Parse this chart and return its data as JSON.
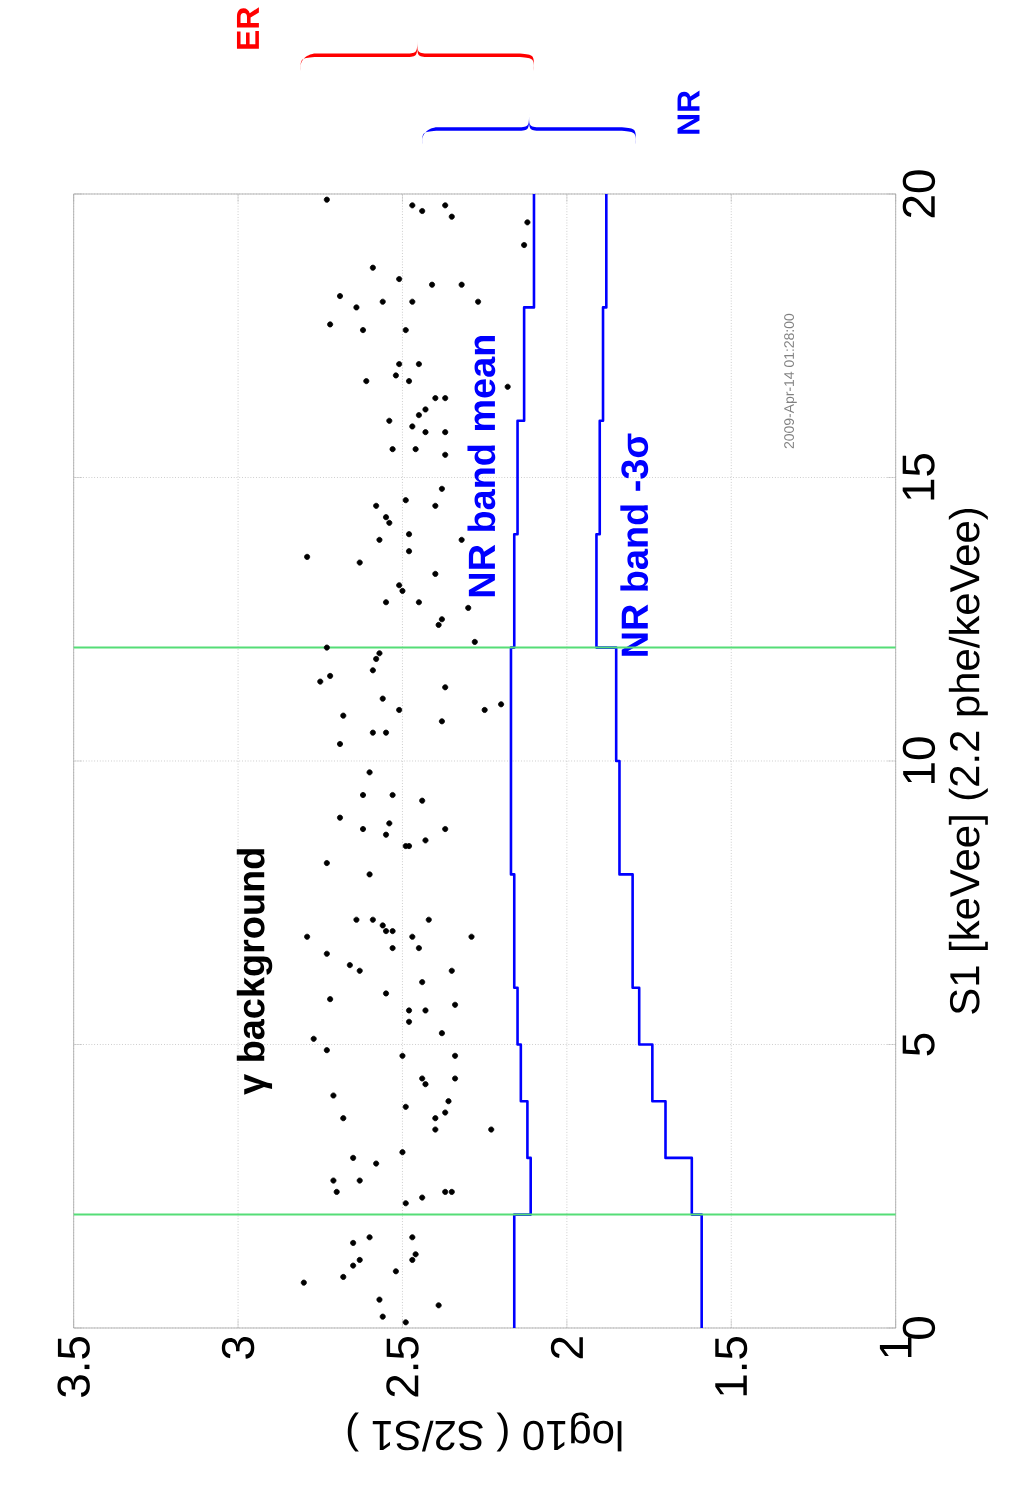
{
  "chart_data": {
    "type": "scatter",
    "xlabel": "log10 ( S2/S1 )",
    "ylabel": "S1 [keVee] (2.2 phe/keVee)",
    "xlim": [
      3.5,
      1
    ],
    "ylim": [
      0,
      20
    ],
    "xticks": [
      3.5,
      3,
      2.5,
      2,
      1.5,
      1
    ],
    "yticks": [
      0,
      5,
      10,
      15,
      20
    ],
    "grid": true,
    "series": [
      {
        "name": "γ background",
        "color": "#000000",
        "marker": "circle",
        "values": [
          19.9,
          19.8,
          19.7,
          19.8,
          19.6,
          19.5,
          19.1,
          18.7,
          18.5,
          18.4,
          18.4,
          18.2,
          18.0,
          18.1,
          18.1,
          18.1,
          17.7,
          17.6,
          17.6,
          17.0,
          16.8,
          17.0,
          16.7,
          16.7,
          16.6,
          16.4,
          16.4,
          16.2,
          16.1,
          16.0,
          15.9,
          15.8,
          15.8,
          15.5,
          15.5,
          15.4,
          14.8,
          14.6,
          14.5,
          14.5,
          14.3,
          14.2,
          14.0,
          13.9,
          13.9,
          13.6,
          13.5,
          13.7,
          13.3,
          13.1,
          13.0,
          12.8,
          12.8,
          12.5,
          12.4,
          12.7,
          12.1,
          12.0,
          11.9,
          11.8,
          11.4,
          11.5,
          11.6,
          11.3,
          11.1,
          10.9,
          10.8,
          10.7,
          10.9,
          11.0,
          10.5,
          10.5,
          10.3,
          9.8,
          9.4,
          9.4,
          9.3,
          9.0,
          8.8,
          8.9,
          8.7,
          8.8,
          8.5,
          8.5,
          8.6,
          8.2,
          8.0,
          6.9,
          7.2,
          7.2,
          7.1,
          7.0,
          7.0,
          6.7,
          6.9,
          6.7,
          7.2,
          6.9,
          6.6,
          6.4,
          6.3,
          6.3,
          6.1,
          5.8,
          5.9,
          5.6,
          5.4,
          5.6,
          5.7,
          5.2,
          5.1,
          4.9,
          4.8,
          4.8,
          4.4,
          4.4,
          4.3,
          4.0,
          4.1,
          3.9,
          3.8,
          3.7,
          3.5,
          3.7,
          3.5,
          3.0,
          2.9,
          3.1,
          2.6,
          2.4,
          2.6,
          2.2,
          2.3,
          2.4,
          2.4,
          1.5,
          1.6,
          1.1,
          1.2,
          0.9,
          0.8,
          1.0,
          1.6,
          1.3,
          1.2,
          0.5,
          0.2,
          0.1,
          0.4
        ],
        "x": [
          2.73,
          2.47,
          2.44,
          2.37,
          2.35,
          2.12,
          2.13,
          2.59,
          2.51,
          2.41,
          2.32,
          2.69,
          2.64,
          2.56,
          2.47,
          2.27,
          2.72,
          2.62,
          2.49,
          2.51,
          2.52,
          2.45,
          2.61,
          2.48,
          2.18,
          2.4,
          2.37,
          2.43,
          2.45,
          2.54,
          2.47,
          2.43,
          2.37,
          2.53,
          2.46,
          2.37,
          2.38,
          2.49,
          2.4,
          2.58,
          2.55,
          2.54,
          2.48,
          2.57,
          2.32,
          2.79,
          2.63,
          2.48,
          2.4,
          2.51,
          2.5,
          2.55,
          2.45,
          2.38,
          2.39,
          2.3,
          2.28,
          2.73,
          2.57,
          2.58,
          2.75,
          2.72,
          2.59,
          2.37,
          2.56,
          2.51,
          2.68,
          2.38,
          2.25,
          2.2,
          2.59,
          2.55,
          2.69,
          2.6,
          2.62,
          2.53,
          2.44,
          2.69,
          2.62,
          2.54,
          2.55,
          2.37,
          2.49,
          2.48,
          2.43,
          2.73,
          2.6,
          2.79,
          2.64,
          2.59,
          2.56,
          2.55,
          2.53,
          2.53,
          2.47,
          2.45,
          2.42,
          2.29,
          2.73,
          2.66,
          2.63,
          2.35,
          2.44,
          2.72,
          2.55,
          2.48,
          2.48,
          2.43,
          2.34,
          2.38,
          2.77,
          2.73,
          2.5,
          2.34,
          2.34,
          2.44,
          2.43,
          2.36,
          2.71,
          2.49,
          2.37,
          2.4,
          2.4,
          2.68,
          2.23,
          2.65,
          2.58,
          2.5,
          2.71,
          2.7,
          2.63,
          2.49,
          2.44,
          2.37,
          2.35,
          2.65,
          2.6,
          2.65,
          2.63,
          2.68,
          2.8,
          2.52,
          2.47,
          2.46,
          2.47,
          2.57,
          2.56,
          2.49,
          2.39
        ]
      },
      {
        "type": "line",
        "name": "NR band mean",
        "color": "#0000ff",
        "x": [
          2.16,
          2.16,
          2.11,
          2.11,
          2.12,
          2.12,
          2.14,
          2.14,
          2.15,
          2.15,
          2.16,
          2.16,
          2.17,
          2.17,
          2.16,
          2.16,
          2.15,
          2.15,
          2.13,
          2.13,
          2.1,
          2.1
        ],
        "values": [
          0,
          2,
          2,
          3,
          3,
          4,
          4,
          5,
          5,
          6,
          6,
          8,
          8,
          12,
          12,
          14,
          14,
          16,
          16,
          18,
          18,
          20
        ]
      },
      {
        "type": "line",
        "name": "NR band -3σ",
        "color": "#0000ff",
        "x": [
          1.59,
          1.59,
          1.62,
          1.62,
          1.7,
          1.7,
          1.74,
          1.74,
          1.78,
          1.78,
          1.8,
          1.8,
          1.84,
          1.84,
          1.85,
          1.85,
          1.91,
          1.91,
          1.9,
          1.9,
          1.89,
          1.89,
          1.88,
          1.88
        ],
        "values": [
          0,
          2,
          2,
          3,
          3,
          4,
          4,
          5,
          5,
          6,
          6,
          8,
          8,
          10,
          10,
          12,
          12,
          14,
          14,
          16,
          16,
          18,
          18,
          20
        ]
      }
    ],
    "ref_lines": [
      {
        "axis": "y",
        "value": 2,
        "color": "#55dd77"
      },
      {
        "axis": "y",
        "value": 12,
        "color": "#55dd77"
      }
    ],
    "annotations": [
      "ER",
      "NR",
      "2009-Apr-14 01:28:00"
    ]
  }
}
